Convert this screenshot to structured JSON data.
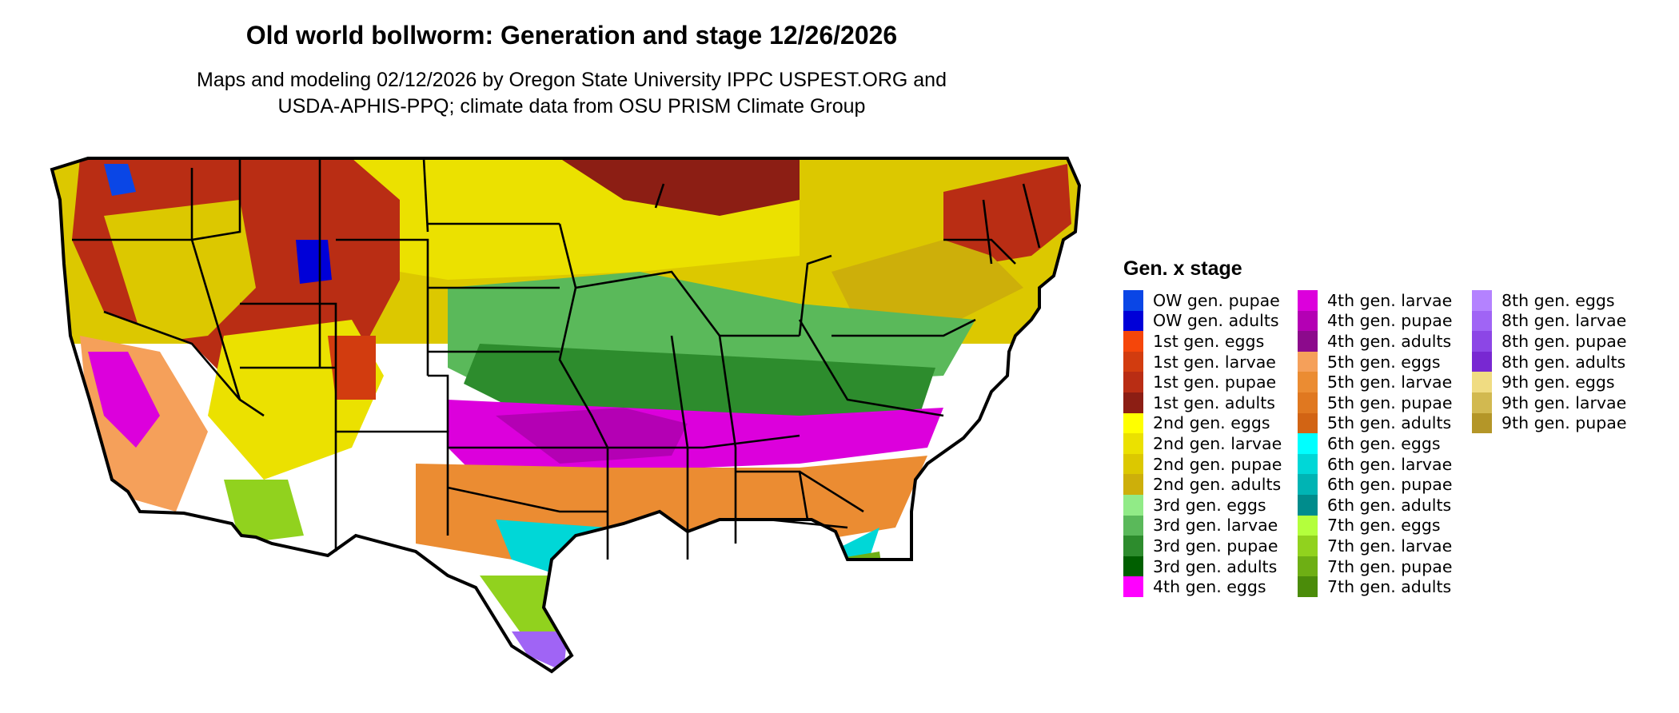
{
  "header": {
    "title": "Old world bollworm: Generation and stage 12/26/2026",
    "subtitle_line1": "Maps and modeling 02/12/2026 by Oregon State University IPPC USPEST.ORG and",
    "subtitle_line2": "USDA-APHIS-PPQ; climate data from OSU PRISM Climate Group"
  },
  "legend": {
    "title": "Gen. x stage",
    "columns": [
      [
        {
          "label": "OW gen. pupae",
          "color": "#0a46e6"
        },
        {
          "label": "OW gen. adults",
          "color": "#0000d8"
        },
        {
          "label": "1st gen. eggs",
          "color": "#f5460a"
        },
        {
          "label": "1st gen. larvae",
          "color": "#d23c0f"
        },
        {
          "label": "1st gen. pupae",
          "color": "#b92d14"
        },
        {
          "label": "1st gen. adults",
          "color": "#8c1e14"
        },
        {
          "label": "2nd gen. eggs",
          "color": "#ffff00"
        },
        {
          "label": "2nd gen. larvae",
          "color": "#ebe100"
        },
        {
          "label": "2nd gen. pupae",
          "color": "#dcc800"
        },
        {
          "label": "2nd gen. adults",
          "color": "#cdaf0a"
        },
        {
          "label": "3rd gen. eggs",
          "color": "#91eb87"
        },
        {
          "label": "3rd gen. larvae",
          "color": "#5ab95a"
        },
        {
          "label": "3rd gen. pupae",
          "color": "#2d8c2d"
        },
        {
          "label": "3rd gen. adults",
          "color": "#005f00"
        },
        {
          "label": "4th gen. eggs",
          "color": "#ff00ff"
        }
      ],
      [
        {
          "label": "4th gen. larvae",
          "color": "#dc00dc"
        },
        {
          "label": "4th gen. pupae",
          "color": "#b400b4"
        },
        {
          "label": "4th gen. adults",
          "color": "#8c0a8c"
        },
        {
          "label": "5th gen. eggs",
          "color": "#f5a05a"
        },
        {
          "label": "5th gen. larvae",
          "color": "#eb8c32"
        },
        {
          "label": "5th gen. pupae",
          "color": "#e07820"
        },
        {
          "label": "5th gen. adults",
          "color": "#d26414"
        },
        {
          "label": "6th gen. eggs",
          "color": "#00ffff"
        },
        {
          "label": "6th gen. larvae",
          "color": "#00d7d7"
        },
        {
          "label": "6th gen. pupae",
          "color": "#00b4b4"
        },
        {
          "label": "6th gen. adults",
          "color": "#008c8c"
        },
        {
          "label": "7th gen. eggs",
          "color": "#b4ff3c"
        },
        {
          "label": "7th gen. larvae",
          "color": "#91d21e"
        },
        {
          "label": "7th gen. pupae",
          "color": "#6eaf14"
        },
        {
          "label": "7th gen. adults",
          "color": "#4b8c0a"
        }
      ],
      [
        {
          "label": "8th gen. eggs",
          "color": "#b482ff"
        },
        {
          "label": "8th gen. larvae",
          "color": "#a064f5"
        },
        {
          "label": "8th gen. pupae",
          "color": "#8c46e6"
        },
        {
          "label": "8th gen. adults",
          "color": "#7828d2"
        },
        {
          "label": "9th gen. eggs",
          "color": "#f0dc82"
        },
        {
          "label": "9th gen. larvae",
          "color": "#d2b950"
        },
        {
          "label": "9th gen. pupae",
          "color": "#b49628"
        }
      ]
    ]
  },
  "map": {
    "region": "Contiguous United States",
    "border_color": "#000000"
  }
}
